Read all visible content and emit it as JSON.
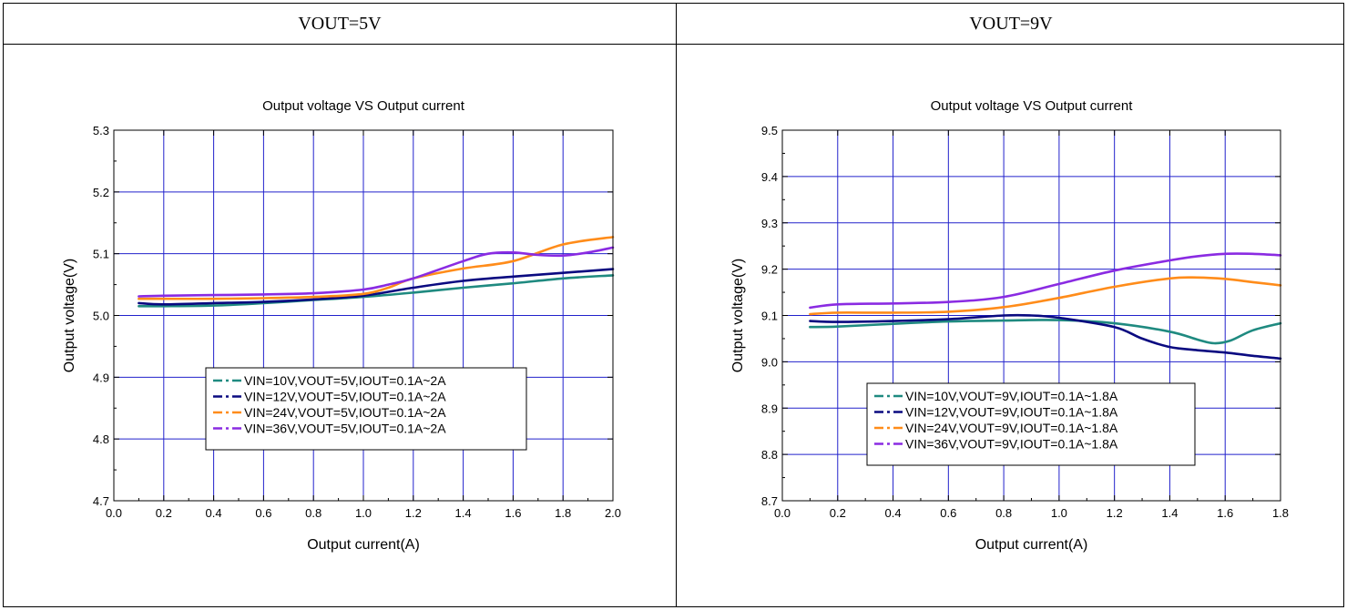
{
  "headers": {
    "left": "VOUT=5V",
    "right": "VOUT=9V"
  },
  "chart_data": [
    {
      "type": "line",
      "title": "Output voltage VS Output current",
      "xlabel": "Output current(A)",
      "ylabel": "Output voltage(V)",
      "xlim": [
        0.0,
        2.0
      ],
      "ylim": [
        4.7,
        5.3
      ],
      "xticks": [
        "0.0",
        "0.2",
        "0.4",
        "0.6",
        "0.8",
        "1.0",
        "1.2",
        "1.4",
        "1.6",
        "1.8",
        "2.0"
      ],
      "yticks": [
        "4.7",
        "4.8",
        "4.9",
        "5.0",
        "5.1",
        "5.2",
        "5.3"
      ],
      "grid": true,
      "legend_position": "bottom-center",
      "series": [
        {
          "name": "VIN=10V,VOUT=5V,IOUT=0.1A~2A",
          "color": "#1f8a80",
          "x": [
            0.1,
            0.2,
            0.4,
            0.6,
            0.8,
            1.0,
            1.2,
            1.4,
            1.6,
            1.8,
            2.0
          ],
          "y": [
            5.015,
            5.015,
            5.016,
            5.02,
            5.025,
            5.03,
            5.037,
            5.045,
            5.052,
            5.06,
            5.065
          ]
        },
        {
          "name": "VIN=12V,VOUT=5V,IOUT=0.1A~2A",
          "color": "#0a0a80",
          "x": [
            0.1,
            0.2,
            0.4,
            0.6,
            0.8,
            1.0,
            1.2,
            1.4,
            1.6,
            1.8,
            2.0
          ],
          "y": [
            5.02,
            5.018,
            5.02,
            5.022,
            5.026,
            5.032,
            5.045,
            5.056,
            5.063,
            5.069,
            5.075
          ]
        },
        {
          "name": "VIN=24V,VOUT=5V,IOUT=0.1A~2A",
          "color": "#ff8c1a",
          "x": [
            0.1,
            0.2,
            0.4,
            0.6,
            0.8,
            1.0,
            1.1,
            1.2,
            1.4,
            1.6,
            1.8,
            2.0
          ],
          "y": [
            5.027,
            5.027,
            5.027,
            5.028,
            5.03,
            5.035,
            5.045,
            5.06,
            5.076,
            5.088,
            5.115,
            5.127
          ]
        },
        {
          "name": "VIN=36V,VOUT=5V,IOUT=0.1A~2A",
          "color": "#8a2be2",
          "x": [
            0.1,
            0.2,
            0.4,
            0.6,
            0.8,
            1.0,
            1.1,
            1.2,
            1.4,
            1.5,
            1.6,
            1.7,
            1.8,
            1.9,
            2.0
          ],
          "y": [
            5.031,
            5.032,
            5.033,
            5.034,
            5.036,
            5.042,
            5.05,
            5.06,
            5.088,
            5.1,
            5.102,
            5.098,
            5.097,
            5.102,
            5.11
          ]
        }
      ]
    },
    {
      "type": "line",
      "title": "Output voltage VS Output current",
      "xlabel": "Output current(A)",
      "ylabel": "Output voltage(V)",
      "xlim": [
        0.0,
        1.8
      ],
      "ylim": [
        8.7,
        9.5
      ],
      "xticks": [
        "0.0",
        "0.2",
        "0.4",
        "0.6",
        "0.8",
        "1.0",
        "1.2",
        "1.4",
        "1.6",
        "1.8"
      ],
      "yticks": [
        "8.7",
        "8.8",
        "8.9",
        "9.0",
        "9.1",
        "9.2",
        "9.3",
        "9.4",
        "9.5"
      ],
      "grid": true,
      "legend_position": "bottom-center",
      "series": [
        {
          "name": "VIN=10V,VOUT=9V,IOUT=0.1A~1.8A",
          "color": "#1f8a80",
          "x": [
            0.1,
            0.2,
            0.4,
            0.6,
            0.8,
            1.0,
            1.2,
            1.4,
            1.5,
            1.56,
            1.62,
            1.7,
            1.8
          ],
          "y": [
            9.075,
            9.076,
            9.082,
            9.087,
            9.089,
            9.09,
            9.083,
            9.065,
            9.048,
            9.04,
            9.046,
            9.068,
            9.083
          ]
        },
        {
          "name": "VIN=12V,VOUT=9V,IOUT=0.1A~1.8A",
          "color": "#0a0a80",
          "x": [
            0.1,
            0.2,
            0.4,
            0.6,
            0.8,
            0.9,
            1.0,
            1.2,
            1.3,
            1.4,
            1.5,
            1.6,
            1.7,
            1.8
          ],
          "y": [
            9.088,
            9.086,
            9.088,
            9.092,
            9.1,
            9.1,
            9.095,
            9.075,
            9.05,
            9.032,
            9.025,
            9.02,
            9.013,
            9.007
          ]
        },
        {
          "name": "VIN=24V,VOUT=9V,IOUT=0.1A~1.8A",
          "color": "#ff8c1a",
          "x": [
            0.1,
            0.2,
            0.4,
            0.6,
            0.8,
            1.0,
            1.2,
            1.4,
            1.5,
            1.6,
            1.7,
            1.8
          ],
          "y": [
            9.103,
            9.106,
            9.106,
            9.108,
            9.118,
            9.138,
            9.162,
            9.18,
            9.182,
            9.179,
            9.172,
            9.165
          ]
        },
        {
          "name": "VIN=36V,VOUT=9V,IOUT=0.1A~1.8A",
          "color": "#8a2be2",
          "x": [
            0.1,
            0.2,
            0.4,
            0.6,
            0.8,
            1.0,
            1.2,
            1.4,
            1.5,
            1.6,
            1.7,
            1.8
          ],
          "y": [
            9.117,
            9.124,
            9.126,
            9.129,
            9.14,
            9.168,
            9.197,
            9.219,
            9.228,
            9.233,
            9.233,
            9.23
          ]
        }
      ]
    }
  ]
}
